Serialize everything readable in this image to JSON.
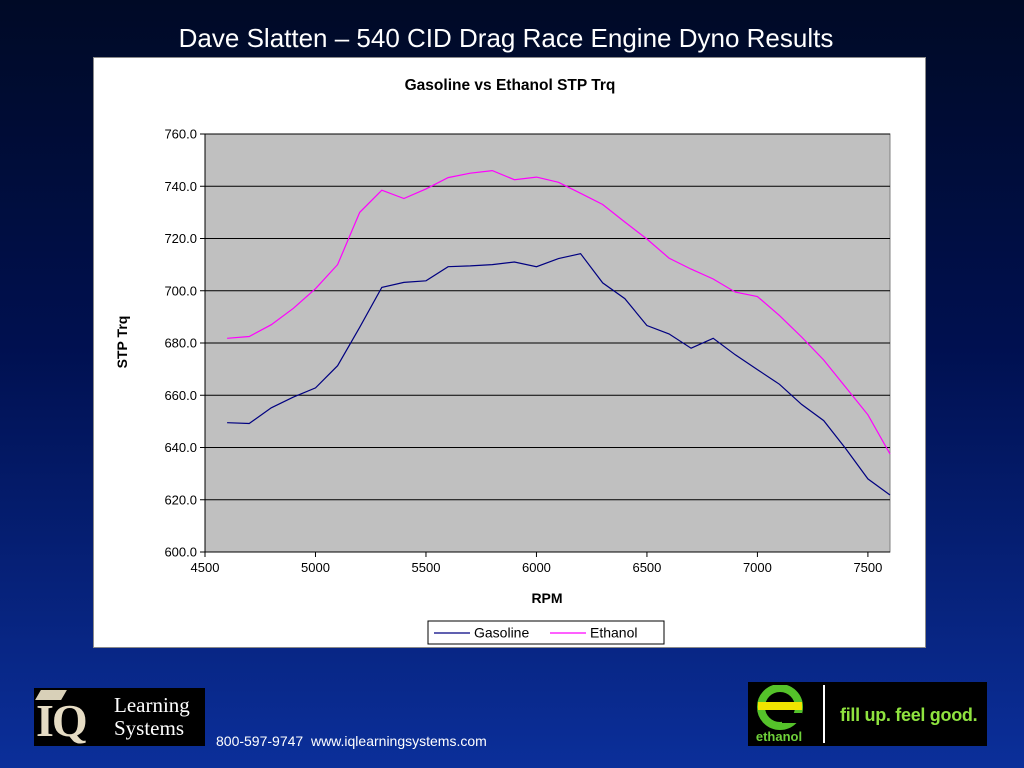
{
  "slide": {
    "title": "Dave Slatten – 540 CID Drag Race Engine Dyno Results"
  },
  "chart_data": {
    "type": "line",
    "title": "Gasoline vs Ethanol STP Trq",
    "xlabel": "RPM",
    "ylabel": "STP Trq",
    "xlim": [
      4500,
      7600
    ],
    "ylim": [
      600,
      760
    ],
    "x_ticks": [
      "4500",
      "5000",
      "5500",
      "6000",
      "6500",
      "7000",
      "7500"
    ],
    "y_ticks": [
      "600.0",
      "620.0",
      "640.0",
      "660.0",
      "680.0",
      "700.0",
      "720.0",
      "740.0",
      "760.0"
    ],
    "grid": true,
    "legend_placement": "bottom",
    "plot_background": "#c0c0c0",
    "x": [
      4600,
      4700,
      4800,
      4900,
      5000,
      5100,
      5200,
      5300,
      5400,
      5500,
      5600,
      5700,
      5800,
      5900,
      6000,
      6100,
      6200,
      6300,
      6400,
      6500,
      6600,
      6700,
      6800,
      6900,
      7000,
      7100,
      7200,
      7300,
      7400,
      7500,
      7600
    ],
    "series": [
      {
        "name": "Gasoline",
        "color": "#000080",
        "values": [
          649.5,
          649.2,
          655.2,
          659.3,
          662.8,
          671.3,
          686.0,
          701.3,
          703.2,
          703.8,
          709.2,
          709.5,
          710.0,
          711.0,
          709.2,
          712.3,
          714.2,
          703.0,
          697.0,
          686.7,
          683.5,
          678.0,
          681.8,
          675.5,
          669.8,
          664.2,
          656.5,
          650.3,
          639.5,
          628.0,
          621.8
        ]
      },
      {
        "name": "Ethanol",
        "color": "#ff00ff",
        "values": [
          681.8,
          682.5,
          687.0,
          693.3,
          700.8,
          710.0,
          730.0,
          738.5,
          735.3,
          739.0,
          743.3,
          745.0,
          746.0,
          742.5,
          743.5,
          741.5,
          737.3,
          733.0,
          726.3,
          719.8,
          712.5,
          708.3,
          704.5,
          699.5,
          697.8,
          690.5,
          682.3,
          673.5,
          663.0,
          652.5,
          637.5
        ]
      }
    ]
  },
  "footer": {
    "logo_mark": "IQ",
    "logo_line1": "Learning",
    "logo_line2": "Systems",
    "logo_icon": "graduation-cap-icon",
    "contact": "800-597-9747  www.iqlearningsystems.com"
  },
  "ethanol_badge": {
    "word": "ethanol",
    "slogan": "fill up. feel good.",
    "accent": "#8fe33f",
    "emblem_icon": "ethanol-e-icon"
  }
}
